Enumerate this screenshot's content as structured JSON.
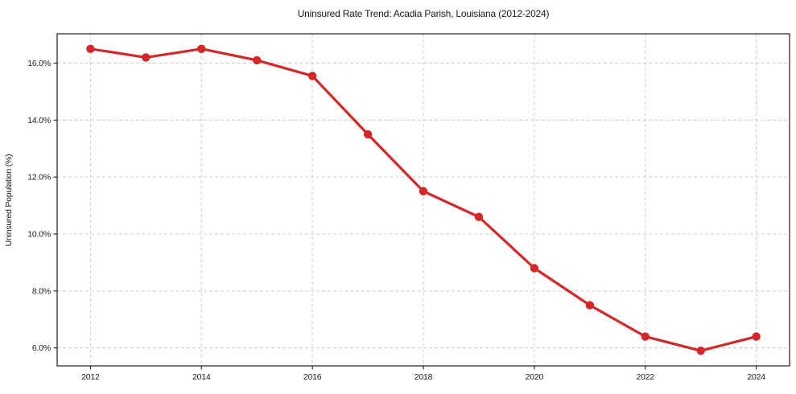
{
  "figure": {
    "title": "Uninsured Rate Trend: Acadia Parish, Louisiana (2012-2024)"
  },
  "chart_data": {
    "type": "line",
    "title": "Uninsured Rate Trend: Acadia Parish, Louisiana (2012-2024)",
    "xlabel": "",
    "ylabel": "Uninsured Population (%)",
    "x": [
      2012,
      2013,
      2014,
      2015,
      2016,
      2017,
      2018,
      2019,
      2020,
      2021,
      2022,
      2023,
      2024
    ],
    "series": [
      {
        "name": "Uninsured Population (%)",
        "values": [
          16.5,
          16.2,
          16.5,
          16.1,
          15.55,
          13.5,
          11.5,
          10.6,
          8.8,
          7.5,
          6.4,
          5.9,
          6.4
        ]
      }
    ],
    "xticks": [
      2012,
      2014,
      2016,
      2018,
      2020,
      2022,
      2024
    ],
    "xtick_labels": [
      "2012",
      "2014",
      "2016",
      "2018",
      "2020",
      "2022",
      "2024"
    ],
    "yticks": [
      6,
      8,
      10,
      12,
      14,
      16
    ],
    "ytick_labels": [
      "6.0%",
      "8.0%",
      "10.0%",
      "12.0%",
      "14.0%",
      "16.0%"
    ],
    "xlim": [
      2011.4,
      2024.6
    ],
    "ylim": [
      5.37,
      17.03
    ],
    "grid": true,
    "grid_style": "dashed",
    "legend_position": "none",
    "marker": "circle",
    "colors": {
      "line": "#d62728",
      "marker": "#d62728",
      "grid": "#cccccc",
      "spine": "#1c1c1c",
      "tick": "#1c1c1c",
      "text": "#1a1a1a",
      "background": "#ffffff"
    }
  }
}
